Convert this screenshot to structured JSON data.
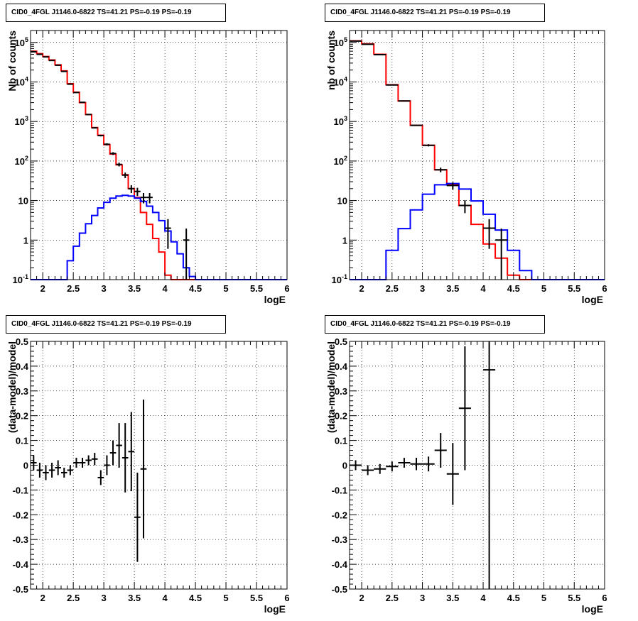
{
  "chart_data": [
    {
      "type": "histogram-step",
      "title": "CID0_4FGL J1146.0-6822 TS=41.21 PS=-0.19 PS=-0.19",
      "xlabel": "logE",
      "ylabel": "Nb of counts",
      "xlim": [
        1.8,
        6.0
      ],
      "ylim": [
        0.1,
        200000
      ],
      "yscale": "log",
      "grid": true,
      "xticks": [
        "2",
        "2.5",
        "3",
        "3.5",
        "4",
        "4.5",
        "5",
        "5.5",
        "6"
      ],
      "yticks": [
        "10^-1",
        "1",
        "10",
        "10^2",
        "10^3",
        "10^4",
        "10^5"
      ],
      "bin_edges": [
        1.8,
        1.9,
        2.0,
        2.1,
        2.2,
        2.3,
        2.4,
        2.5,
        2.6,
        2.7,
        2.8,
        2.9,
        3.0,
        3.1,
        3.2,
        3.3,
        3.4,
        3.5,
        3.6,
        3.7,
        3.8,
        3.9,
        4.0,
        4.1,
        4.2,
        4.3,
        4.4,
        4.5,
        4.6,
        4.7,
        4.8,
        4.9,
        5.0,
        5.1,
        5.2,
        5.3,
        5.4,
        5.5,
        5.6,
        5.7,
        5.8,
        5.9,
        6.0
      ],
      "series": [
        {
          "color": "#ff0000",
          "values": [
            60000,
            52000,
            44000,
            36000,
            27000,
            19000,
            9000,
            5500,
            3000,
            1500,
            700,
            450,
            260,
            150,
            80,
            45,
            20,
            12,
            5,
            2.5,
            1.1,
            0.5,
            0.13,
            0.1,
            0.1,
            0.1,
            0.1,
            0.1,
            0.1,
            0.1,
            0.1,
            0.1,
            0.1,
            0.1,
            0.1,
            0.1,
            0.1,
            0.1,
            0.1,
            0.1,
            0.1,
            0.1
          ]
        },
        {
          "color": "#0000ff",
          "values": [
            0.1,
            0.1,
            0.1,
            0.1,
            0.1,
            0.1,
            0.3,
            0.7,
            1.5,
            2.6,
            4.2,
            6.5,
            9,
            11.5,
            13,
            13.5,
            13,
            11.5,
            9.5,
            7.2,
            5,
            3.1,
            1.7,
            0.9,
            0.45,
            0.2,
            0.12,
            0.1,
            0.1,
            0.1,
            0.1,
            0.1,
            0.1,
            0.1,
            0.1,
            0.1,
            0.1,
            0.1,
            0.1,
            0.1,
            0.1,
            0.1
          ]
        }
      ],
      "points": [
        {
          "x": 1.85,
          "y": 58000,
          "err": 250
        },
        {
          "x": 1.95,
          "y": 50000,
          "err": 230
        },
        {
          "x": 2.05,
          "y": 43000,
          "err": 210
        },
        {
          "x": 2.15,
          "y": 35000,
          "err": 190
        },
        {
          "x": 2.25,
          "y": 26500,
          "err": 160
        },
        {
          "x": 2.35,
          "y": 18500,
          "err": 140
        },
        {
          "x": 2.45,
          "y": 8800,
          "err": 95
        },
        {
          "x": 2.55,
          "y": 5400,
          "err": 75
        },
        {
          "x": 2.65,
          "y": 3050,
          "err": 55
        },
        {
          "x": 2.75,
          "y": 1500,
          "err": 40
        },
        {
          "x": 2.85,
          "y": 690,
          "err": 26
        },
        {
          "x": 2.95,
          "y": 440,
          "err": 21
        },
        {
          "x": 3.05,
          "y": 265,
          "err": 16
        },
        {
          "x": 3.15,
          "y": 155,
          "err": 12
        },
        {
          "x": 3.25,
          "y": 82,
          "err": 9
        },
        {
          "x": 3.35,
          "y": 44,
          "err": 7
        },
        {
          "x": 3.45,
          "y": 20,
          "err": 4.5
        },
        {
          "x": 3.55,
          "y": 17,
          "err": 4
        },
        {
          "x": 3.65,
          "y": 12,
          "err": 3.5
        },
        {
          "x": 3.75,
          "y": 12,
          "err": 3.5
        },
        {
          "x": 4.05,
          "y": 2,
          "err": 1.4
        },
        {
          "x": 4.35,
          "y": 1,
          "err": 0.95
        }
      ]
    },
    {
      "type": "histogram-step",
      "title": "CID0_4FGL J1146.0-6822 TS=41.21 PS=-0.19 PS=-0.19",
      "xlabel": "logE",
      "ylabel": "nb of counts",
      "xlim": [
        1.8,
        6.0
      ],
      "ylim": [
        0.1,
        200000
      ],
      "yscale": "log",
      "grid": true,
      "xticks": [
        "2",
        "2.5",
        "3",
        "3.5",
        "4",
        "4.5",
        "5",
        "5.5",
        "6"
      ],
      "yticks": [
        "10^-1",
        "1",
        "10",
        "10^2",
        "10^3",
        "10^4",
        "10^5"
      ],
      "bin_edges": [
        1.8,
        2.0,
        2.2,
        2.4,
        2.6,
        2.8,
        3.0,
        3.2,
        3.4,
        3.6,
        3.8,
        4.0,
        4.2,
        4.4,
        4.6,
        4.8,
        5.0,
        5.2,
        5.4,
        5.6,
        5.8,
        6.0
      ],
      "series": [
        {
          "color": "#ff0000",
          "values": [
            110000,
            92000,
            50000,
            8500,
            3300,
            800,
            250,
            60,
            25,
            7.5,
            2.5,
            0.8,
            0.35,
            0.13,
            0.1,
            0.1,
            0.1,
            0.1,
            0.1,
            0.1,
            0.1
          ]
        },
        {
          "color": "#0000ff",
          "values": [
            0.1,
            0.1,
            0.1,
            0.55,
            1.95,
            5.8,
            14.5,
            25,
            27,
            19.5,
            9.8,
            4.5,
            1.8,
            0.55,
            0.17,
            0.1,
            0.1,
            0.1,
            0.1,
            0.1,
            0.1,
            0.1
          ]
        }
      ],
      "points": [
        {
          "x": 1.9,
          "y": 108000,
          "err": 330
        },
        {
          "x": 2.1,
          "y": 90000,
          "err": 300
        },
        {
          "x": 2.3,
          "y": 49000,
          "err": 220
        },
        {
          "x": 2.5,
          "y": 8400,
          "err": 92
        },
        {
          "x": 2.7,
          "y": 3300,
          "err": 57
        },
        {
          "x": 2.9,
          "y": 800,
          "err": 28
        },
        {
          "x": 3.1,
          "y": 250,
          "err": 16
        },
        {
          "x": 3.3,
          "y": 60,
          "err": 8
        },
        {
          "x": 3.5,
          "y": 24,
          "err": 5
        },
        {
          "x": 3.7,
          "y": 7.5,
          "err": 2.7
        },
        {
          "x": 4.1,
          "y": 2,
          "err": 1.4
        },
        {
          "x": 4.3,
          "y": 1,
          "err": 0.95
        }
      ]
    },
    {
      "type": "scatter-errorbars",
      "title": "CID0_4FGL J1146.0-6822 TS=41.21 PS=-0.19 PS=-0.19",
      "xlabel": "logE",
      "ylabel": "(data-model)/model",
      "xlim": [
        1.8,
        6.0
      ],
      "ylim": [
        -0.5,
        0.5
      ],
      "yscale": "linear",
      "grid": true,
      "xticks": [
        "2",
        "2.5",
        "3",
        "3.5",
        "4",
        "4.5",
        "5",
        "5.5",
        "6"
      ],
      "yticks": [
        "-0.5",
        "-0.4",
        "-0.3",
        "-0.2",
        "-0.1",
        "0",
        "0.1",
        "0.2",
        "0.3",
        "0.4",
        "0.5"
      ],
      "points": [
        {
          "x": 1.85,
          "y": 0.01,
          "err": 0.03
        },
        {
          "x": 1.95,
          "y": -0.02,
          "err": 0.03
        },
        {
          "x": 2.05,
          "y": -0.03,
          "err": 0.03
        },
        {
          "x": 2.15,
          "y": -0.02,
          "err": 0.03
        },
        {
          "x": 2.25,
          "y": -0.01,
          "err": 0.03
        },
        {
          "x": 2.35,
          "y": -0.03,
          "err": 0.02
        },
        {
          "x": 2.45,
          "y": -0.02,
          "err": 0.02
        },
        {
          "x": 2.55,
          "y": 0.01,
          "err": 0.02
        },
        {
          "x": 2.65,
          "y": 0.01,
          "err": 0.02
        },
        {
          "x": 2.75,
          "y": 0.02,
          "err": 0.02
        },
        {
          "x": 2.85,
          "y": 0.025,
          "err": 0.025
        },
        {
          "x": 2.95,
          "y": -0.05,
          "err": 0.03
        },
        {
          "x": 3.05,
          "y": 0.0,
          "err": 0.04
        },
        {
          "x": 3.15,
          "y": 0.05,
          "err": 0.05
        },
        {
          "x": 3.25,
          "y": 0.08,
          "err": 0.09
        },
        {
          "x": 3.35,
          "y": 0.03,
          "err": 0.14
        },
        {
          "x": 3.45,
          "y": 0.055,
          "err": 0.16
        },
        {
          "x": 3.55,
          "y": -0.21,
          "err": 0.18
        },
        {
          "x": 3.65,
          "y": -0.015,
          "err": 0.28
        }
      ]
    },
    {
      "type": "scatter-errorbars",
      "title": "CID0_4FGL J1146.0-6822 TS=41.21 PS=-0.19 PS=-0.19",
      "xlabel": "logE",
      "ylabel": "(data-model)/model",
      "xlim": [
        1.8,
        6.0
      ],
      "ylim": [
        -0.5,
        0.5
      ],
      "yscale": "linear",
      "grid": true,
      "xticks": [
        "2",
        "2.5",
        "3",
        "3.5",
        "4",
        "4.5",
        "5",
        "5.5",
        "6"
      ],
      "yticks": [
        "-0.5",
        "-0.4",
        "-0.3",
        "-0.2",
        "-0.1",
        "0",
        "0.1",
        "0.2",
        "0.3",
        "0.4",
        "0.5"
      ],
      "points": [
        {
          "x": 1.9,
          "y": 0.0,
          "err": 0.02
        },
        {
          "x": 2.1,
          "y": -0.02,
          "err": 0.02
        },
        {
          "x": 2.3,
          "y": -0.015,
          "err": 0.02
        },
        {
          "x": 2.5,
          "y": -0.005,
          "err": 0.02
        },
        {
          "x": 2.7,
          "y": 0.01,
          "err": 0.02
        },
        {
          "x": 2.9,
          "y": 0.005,
          "err": 0.025
        },
        {
          "x": 3.1,
          "y": 0.005,
          "err": 0.03
        },
        {
          "x": 3.3,
          "y": 0.06,
          "err": 0.07
        },
        {
          "x": 3.5,
          "y": -0.035,
          "err": 0.125
        },
        {
          "x": 3.7,
          "y": 0.23,
          "err": 0.25
        },
        {
          "x": 4.1,
          "y": 0.385,
          "err": 0.9
        }
      ]
    }
  ]
}
